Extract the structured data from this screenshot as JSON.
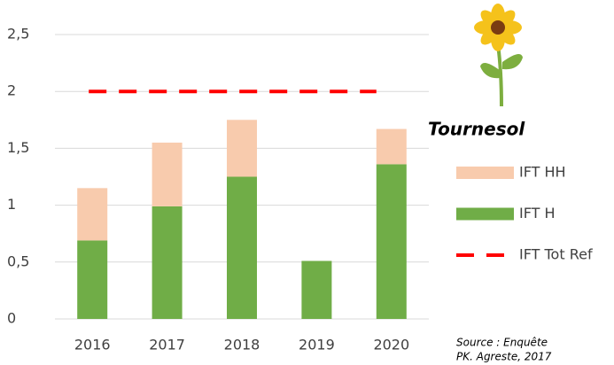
{
  "chart_data": {
    "type": "bar",
    "stacked": true,
    "title": "Tournesol",
    "categories": [
      "2016",
      "2017",
      "2018",
      "2019",
      "2020"
    ],
    "series": [
      {
        "name": "IFT H",
        "color": "#70ad47",
        "values": [
          0.69,
          0.99,
          1.25,
          0.51,
          1.36
        ]
      },
      {
        "name": "IFT HH",
        "color": "#f8cbad",
        "values": [
          0.46,
          0.56,
          0.5,
          null,
          0.31
        ]
      },
      {
        "name": "IFT Tot Ref",
        "type": "line",
        "dashed": true,
        "color": "#ff0000",
        "values": [
          2,
          2,
          2,
          2,
          2
        ]
      }
    ],
    "ylim": [
      0,
      2.5
    ],
    "yticks": [
      0,
      {
        "value": 0.5,
        "label": "0,5"
      },
      1,
      {
        "value": 1.5,
        "label": "1,5"
      },
      2,
      {
        "value": 2.5,
        "label": "2,5"
      }
    ],
    "grid": true,
    "source": [
      "Source : Enquête",
      "PK. Agreste, 2017"
    ]
  }
}
